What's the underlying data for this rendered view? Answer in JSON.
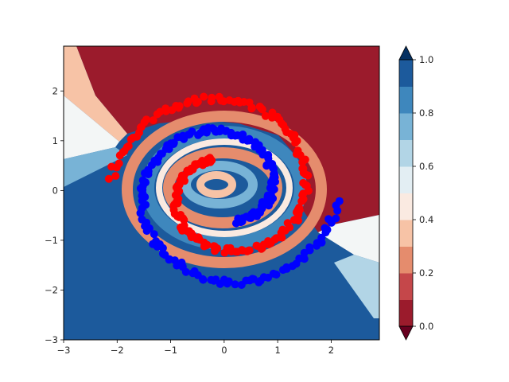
{
  "chart_data": {
    "type": "scatter",
    "title": "",
    "xlabel": "",
    "ylabel": "",
    "xlim": [
      -3,
      2.9
    ],
    "ylim": [
      -3,
      2.9
    ],
    "xticks": [
      -3,
      -2,
      -1,
      0,
      1,
      2
    ],
    "yticks": [
      -3,
      -2,
      -1,
      0,
      1,
      2
    ],
    "grid": false,
    "legend": "none",
    "background": "filled contour of predicted probability (RdBu colormap) showing a spiral decision boundary",
    "series": [
      {
        "marker_color": "#ff0000",
        "spiral": {
          "a": 0.26,
          "b": 0.2,
          "offset": 0,
          "theta_start": 1.9,
          "theta_end": 9.3,
          "n": 190
        }
      },
      {
        "marker_color": "#0000ff",
        "spiral": {
          "a": 0.26,
          "b": 0.2,
          "offset": 3.14159,
          "theta_start": 1.9,
          "theta_end": 9.3,
          "n": 190
        }
      }
    ],
    "colorbar": {
      "ticks": [
        "0.0",
        "0.2",
        "0.4",
        "0.6",
        "0.8",
        "1.0"
      ],
      "levels": [
        0,
        0.1,
        0.2,
        0.3,
        0.4,
        0.5,
        0.6,
        0.7,
        0.8,
        0.9,
        1.0
      ],
      "colors": [
        "#9b1b2c",
        "#c5474a",
        "#e58c6d",
        "#f7c3a6",
        "#faeae1",
        "#e3eef3",
        "#b2d5e6",
        "#78b3d6",
        "#3e87bd",
        "#1c5a9c"
      ],
      "under_color": "#67001f",
      "over_color": "#053061"
    }
  }
}
